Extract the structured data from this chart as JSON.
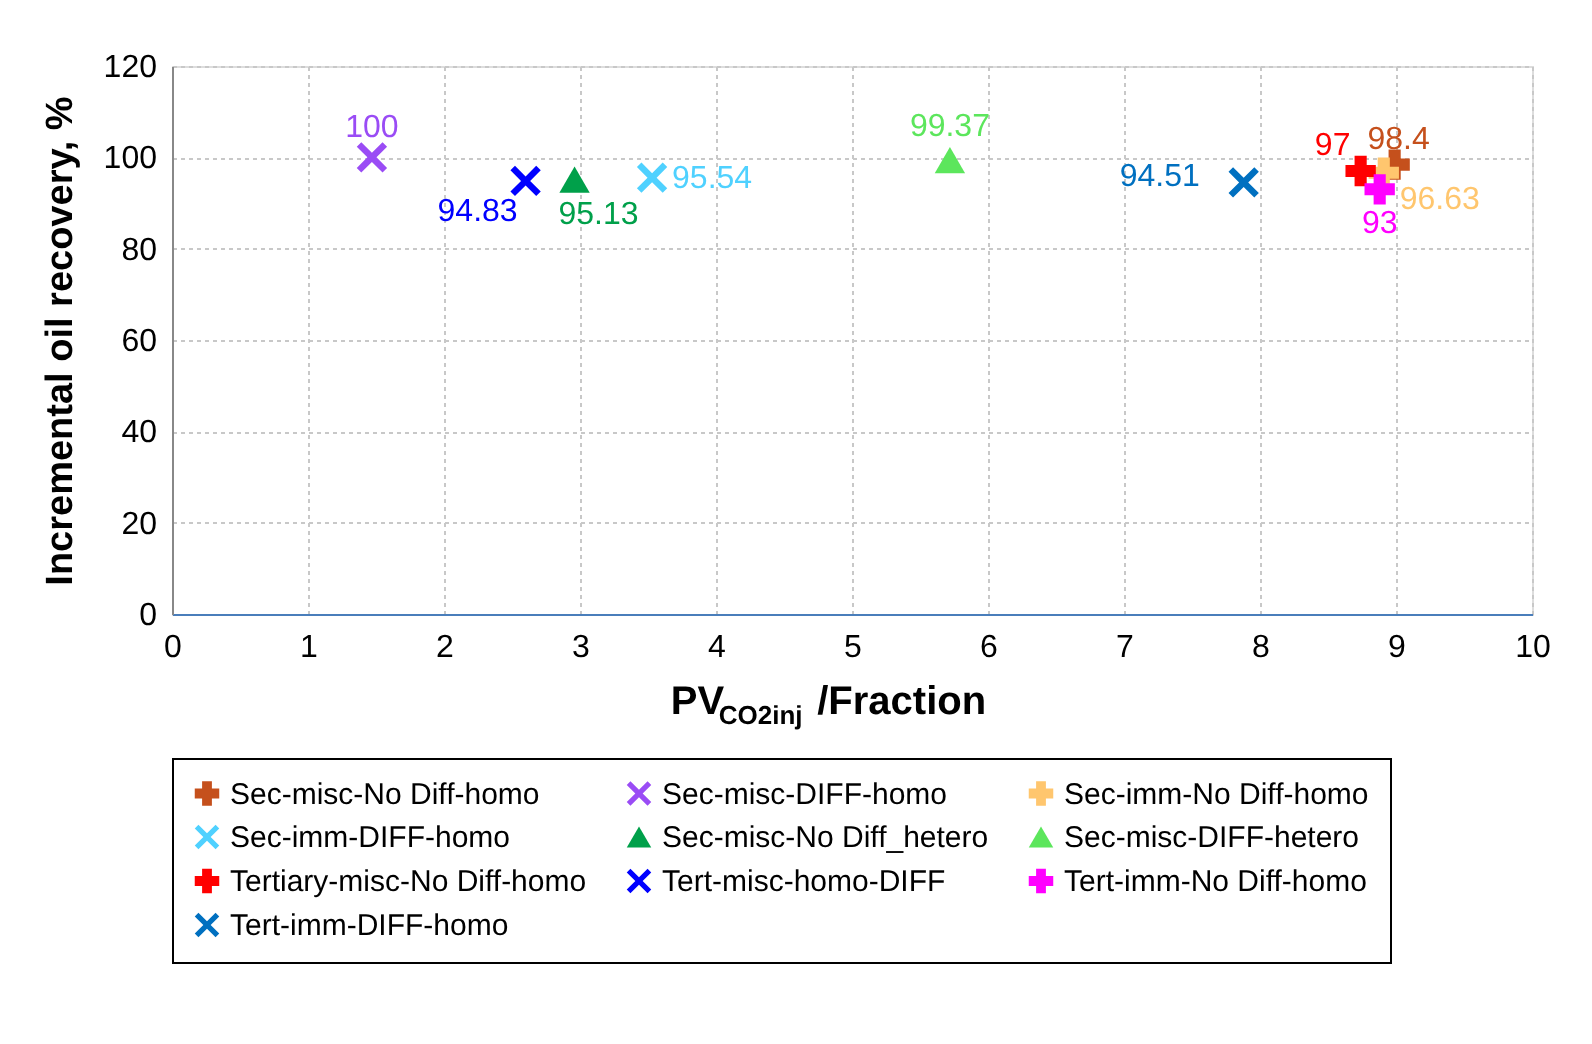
{
  "chart_data": {
    "type": "scatter",
    "xlabel": "PV$_{CO2inj}$/Fraction",
    "ylabel": "Incremental oil recovery, %",
    "xlim": [
      0,
      10
    ],
    "xticks": [
      0,
      1,
      2,
      3,
      4,
      5,
      6,
      7,
      8,
      9,
      10
    ],
    "ylim": [
      0,
      120
    ],
    "yticks": [
      0,
      20,
      40,
      60,
      80,
      100,
      120
    ],
    "grid": true,
    "legend": "bottom",
    "data_labels": true,
    "series": [
      {
        "name": "Sec-misc-No Diff-homo",
        "color": "#c5501c",
        "marker": "plus",
        "x": [
          8.99
        ],
        "values": [
          98.4
        ]
      },
      {
        "name": "Sec-misc-DIFF-homo",
        "color": "#9a4cf5",
        "marker": "cross",
        "x": [
          1.47
        ],
        "values": [
          100
        ]
      },
      {
        "name": "Sec-imm-No Diff-homo",
        "color": "#ffc66e",
        "marker": "plus",
        "x": [
          8.91
        ],
        "values": [
          96.63
        ]
      },
      {
        "name": "Sec-imm-DIFF-homo",
        "color": "#4fd1ff",
        "marker": "cross",
        "x": [
          3.53
        ],
        "values": [
          95.54
        ]
      },
      {
        "name": "Sec-misc-No Diff_hetero",
        "color": "#00a04a",
        "marker": "triangle",
        "x": [
          2.96
        ],
        "values": [
          95.13
        ]
      },
      {
        "name": "Sec-misc-DIFF-hetero",
        "color": "#5ce65c",
        "marker": "triangle",
        "x": [
          5.72
        ],
        "values": [
          99.37
        ]
      },
      {
        "name": "Tertiary-misc-No Diff-homo",
        "color": "#ff0000",
        "marker": "plus",
        "x": [
          8.74
        ],
        "values": [
          97
        ]
      },
      {
        "name": "Tert-misc-homo-DIFF",
        "color": "#0000ff",
        "marker": "cross",
        "x": [
          2.6
        ],
        "values": [
          94.83
        ]
      },
      {
        "name": "Tert-imm-No Diff-homo",
        "color": "#ff00ff",
        "marker": "plus",
        "x": [
          8.88
        ],
        "values": [
          93
        ]
      },
      {
        "name": "Tert-imm-DIFF-homo",
        "color": "#0070c0",
        "marker": "cross",
        "x": [
          7.88
        ],
        "values": [
          94.51
        ]
      }
    ]
  }
}
